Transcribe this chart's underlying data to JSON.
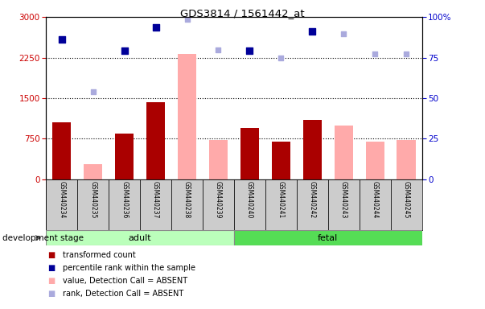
{
  "title": "GDS3814 / 1561442_at",
  "samples": [
    "GSM440234",
    "GSM440235",
    "GSM440236",
    "GSM440237",
    "GSM440238",
    "GSM440239",
    "GSM440240",
    "GSM440241",
    "GSM440242",
    "GSM440243",
    "GSM440244",
    "GSM440245"
  ],
  "groups": [
    "adult",
    "adult",
    "adult",
    "adult",
    "adult",
    "adult",
    "fetal",
    "fetal",
    "fetal",
    "fetal",
    "fetal",
    "fetal"
  ],
  "transformed_count": [
    1050,
    null,
    850,
    1430,
    null,
    null,
    950,
    700,
    1100,
    null,
    null,
    null
  ],
  "absent_value": [
    null,
    280,
    null,
    null,
    2320,
    720,
    null,
    null,
    null,
    1000,
    700,
    720
  ],
  "percentile_rank_left": [
    2580,
    null,
    2380,
    2810,
    null,
    null,
    2380,
    null,
    2740,
    null,
    null,
    null
  ],
  "absent_rank_left": [
    null,
    1620,
    null,
    null,
    2960,
    2390,
    null,
    2250,
    null,
    2690,
    2320,
    2320
  ],
  "left_ylim": [
    0,
    3000
  ],
  "right_ylim": [
    0,
    100
  ],
  "left_yticks": [
    0,
    750,
    1500,
    2250,
    3000
  ],
  "right_ytick_vals": [
    0,
    25,
    50,
    75,
    100
  ],
  "right_ytick_labels": [
    "0",
    "25",
    "50",
    "75",
    "100%"
  ],
  "bar_color_present": "#aa0000",
  "bar_color_absent": "#ffaaaa",
  "dot_color_present": "#000099",
  "dot_color_absent": "#aaaadd",
  "adult_color": "#bbffbb",
  "fetal_color": "#55dd55",
  "stage_edge_color": "#888888",
  "legend_labels": [
    "transformed count",
    "percentile rank within the sample",
    "value, Detection Call = ABSENT",
    "rank, Detection Call = ABSENT"
  ],
  "legend_colors": [
    "#aa0000",
    "#000099",
    "#ffaaaa",
    "#aaaadd"
  ],
  "xlabel_stage": "development stage",
  "grid_lines": [
    750,
    1500,
    2250
  ],
  "bar_width": 0.6,
  "figsize": [
    6.03,
    3.84
  ],
  "dpi": 100
}
